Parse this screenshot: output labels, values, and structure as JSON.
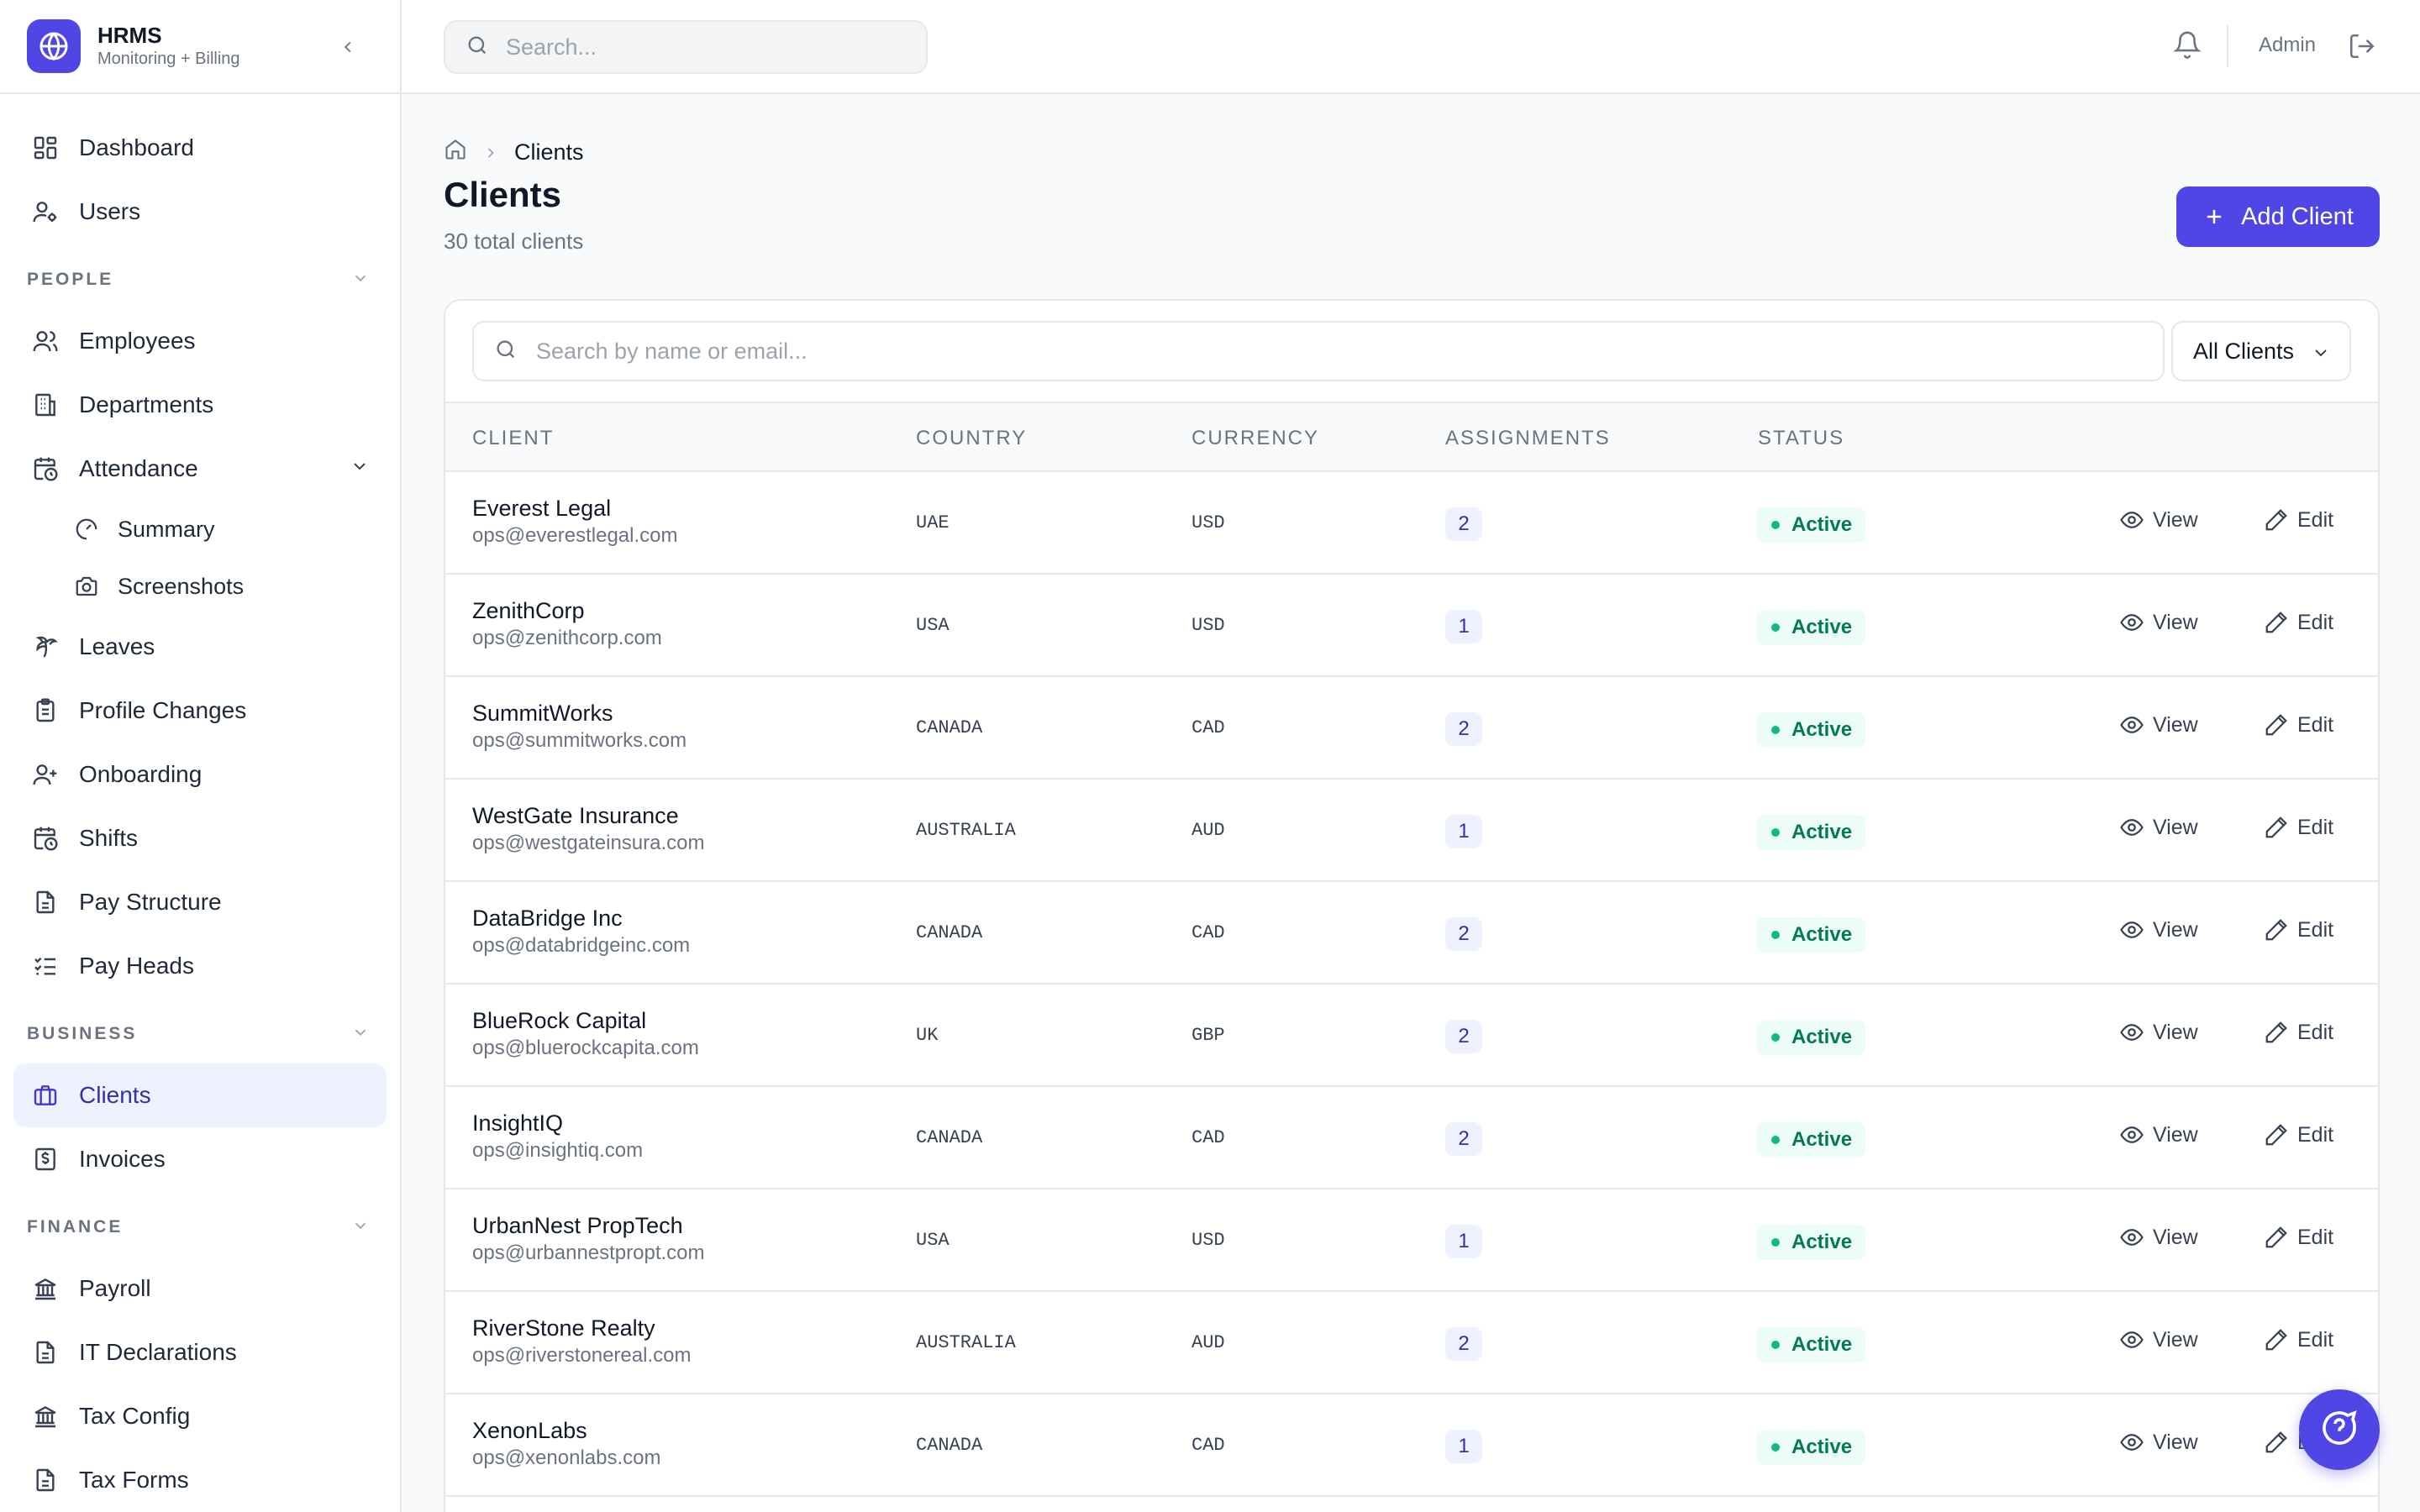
{
  "brand": {
    "title": "HRMS",
    "subtitle": "Monitoring + Billing"
  },
  "topbar": {
    "search_placeholder": "Search...",
    "user": "Admin"
  },
  "sidebar": {
    "top_items": [
      {
        "label": "Dashboard",
        "icon": "grid-icon"
      },
      {
        "label": "Users",
        "icon": "user-gear-icon"
      }
    ],
    "people_label": "PEOPLE",
    "people_items": [
      {
        "label": "Employees",
        "icon": "users-icon"
      },
      {
        "label": "Departments",
        "icon": "building-icon"
      },
      {
        "label": "Attendance",
        "icon": "calendar-clock-icon"
      }
    ],
    "attendance_sub": [
      {
        "label": "Summary",
        "icon": "gauge-icon"
      },
      {
        "label": "Screenshots",
        "icon": "camera-icon"
      }
    ],
    "people_items_2": [
      {
        "label": "Leaves",
        "icon": "palm-tree-icon"
      },
      {
        "label": "Profile Changes",
        "icon": "clipboard-icon"
      },
      {
        "label": "Onboarding",
        "icon": "user-plus-icon"
      },
      {
        "label": "Shifts",
        "icon": "calendar-clock-icon"
      },
      {
        "label": "Pay Structure",
        "icon": "document-icon"
      },
      {
        "label": "Pay Heads",
        "icon": "list-checks-icon"
      }
    ],
    "business_label": "BUSINESS",
    "business_items": [
      {
        "label": "Clients",
        "icon": "briefcase-icon"
      },
      {
        "label": "Invoices",
        "icon": "dollar-receipt-icon"
      }
    ],
    "finance_label": "FINANCE",
    "finance_items": [
      {
        "label": "Payroll",
        "icon": "bank-icon"
      },
      {
        "label": "IT Declarations",
        "icon": "document-icon"
      },
      {
        "label": "Tax Config",
        "icon": "bank-icon"
      },
      {
        "label": "Tax Forms",
        "icon": "document-icon"
      }
    ]
  },
  "breadcrumb": {
    "current": "Clients"
  },
  "page": {
    "title": "Clients",
    "subtitle": "30 total clients",
    "add_label": "Add Client"
  },
  "table": {
    "search_placeholder": "Search by name or email...",
    "filter": "All Clients",
    "headers": {
      "client": "CLIENT",
      "country": "COUNTRY",
      "currency": "CURRENCY",
      "assignments": "ASSIGNMENTS",
      "status": "STATUS"
    },
    "view_label": "View",
    "edit_label": "Edit",
    "rows": [
      {
        "name": "Everest Legal",
        "email": "ops@everestlegal.com",
        "country": "UAE",
        "currency": "USD",
        "assignments": "2",
        "status": "Active"
      },
      {
        "name": "ZenithCorp",
        "email": "ops@zenithcorp.com",
        "country": "USA",
        "currency": "USD",
        "assignments": "1",
        "status": "Active"
      },
      {
        "name": "SummitWorks",
        "email": "ops@summitworks.com",
        "country": "CANADA",
        "currency": "CAD",
        "assignments": "2",
        "status": "Active"
      },
      {
        "name": "WestGate Insurance",
        "email": "ops@westgateinsura.com",
        "country": "AUSTRALIA",
        "currency": "AUD",
        "assignments": "1",
        "status": "Active"
      },
      {
        "name": "DataBridge Inc",
        "email": "ops@databridgeinc.com",
        "country": "CANADA",
        "currency": "CAD",
        "assignments": "2",
        "status": "Active"
      },
      {
        "name": "BlueRock Capital",
        "email": "ops@bluerockcapita.com",
        "country": "UK",
        "currency": "GBP",
        "assignments": "2",
        "status": "Active"
      },
      {
        "name": "InsightIQ",
        "email": "ops@insightiq.com",
        "country": "CANADA",
        "currency": "CAD",
        "assignments": "2",
        "status": "Active"
      },
      {
        "name": "UrbanNest PropTech",
        "email": "ops@urbannestpropt.com",
        "country": "USA",
        "currency": "USD",
        "assignments": "1",
        "status": "Active"
      },
      {
        "name": "RiverStone Realty",
        "email": "ops@riverstonereal.com",
        "country": "AUSTRALIA",
        "currency": "AUD",
        "assignments": "2",
        "status": "Active"
      },
      {
        "name": "XenonLabs",
        "email": "ops@xenonlabs.com",
        "country": "CANADA",
        "currency": "CAD",
        "assignments": "1",
        "status": "Active"
      }
    ]
  },
  "colors": {
    "accent": "#4f46e5",
    "active_bg": "#ecfdf5",
    "active_text": "#047857"
  }
}
